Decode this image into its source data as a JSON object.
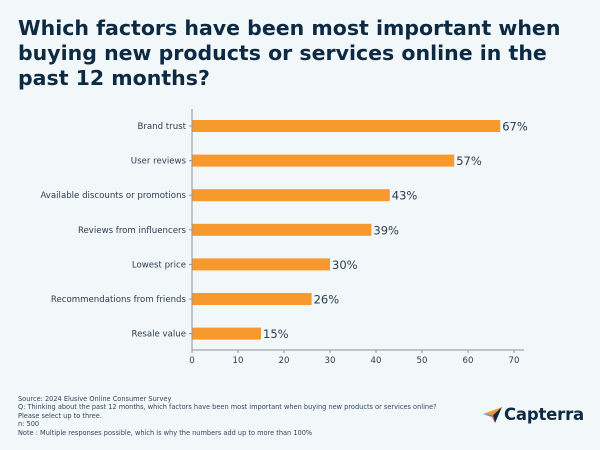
{
  "chart_data": {
    "type": "bar",
    "orientation": "horizontal",
    "title": "Which factors have been most important when buying new products or services online in the past 12 months?",
    "categories": [
      "Brand trust",
      "User reviews",
      "Available discounts or promotions",
      "Reviews from influencers",
      "Lowest price",
      "Recommendations from friends",
      "Resale value"
    ],
    "values": [
      67,
      57,
      43,
      39,
      30,
      26,
      15
    ],
    "value_labels": [
      "67%",
      "57%",
      "43%",
      "39%",
      "30%",
      "26%",
      "15%"
    ],
    "xlabel": "",
    "ylabel": "",
    "xlim": [
      0,
      70
    ],
    "xticks": [
      0,
      10,
      20,
      30,
      40,
      50,
      60,
      70
    ],
    "grid": false,
    "legend": "none",
    "bar_color": "#f7992d"
  },
  "footer": {
    "source": "Source: 2024 Elusive Online Consumer Survey",
    "question": "Q: Thinking about the past 12 months, which factors have been most important when buying new products or services online? Please select up to three.",
    "n": "n: 500",
    "note": "Note : Multiple responses possible, which is why the numbers add up to more than 100%"
  },
  "brand": {
    "name": "Capterra",
    "logo_icon": "capterra-arrow-icon",
    "colors": {
      "navy": "#0c2a44",
      "orange": "#f7992d",
      "blue": "#3b8fd9",
      "red": "#e8553a"
    }
  }
}
